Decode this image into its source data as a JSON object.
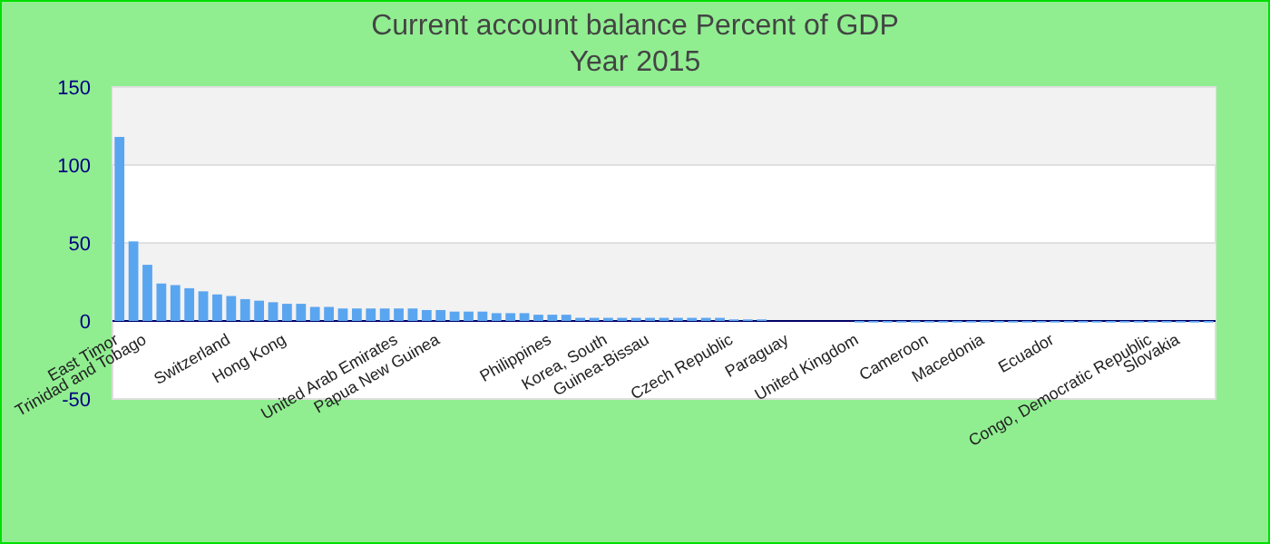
{
  "chart_data": {
    "type": "bar",
    "title": "Current account balance  Percent of GDP",
    "subtitle": "Year 2015",
    "color": "#5aa5f0",
    "ylim": [
      -50,
      150
    ],
    "yticks": [
      -50,
      0,
      50,
      100,
      150
    ],
    "grid": "y",
    "ref_lines": [
      {
        "axis": "y",
        "value": 0,
        "color": "#000066"
      }
    ],
    "categories": [
      "East Timor",
      null,
      "Trinidad and Tobago",
      null,
      null,
      null,
      null,
      null,
      "Switzerland",
      null,
      null,
      null,
      "Hong Kong",
      null,
      null,
      null,
      null,
      null,
      null,
      null,
      "United Arab Emirates",
      null,
      null,
      "Papua New Guinea",
      null,
      null,
      null,
      null,
      null,
      null,
      null,
      "Philippines",
      null,
      null,
      null,
      "Korea, South",
      null,
      null,
      "Guinea-Bissau",
      null,
      null,
      null,
      null,
      null,
      "Czech Republic",
      null,
      null,
      null,
      "Paraguay",
      null,
      null,
      null,
      null,
      "United Kingdom",
      null,
      null,
      null,
      null,
      "Cameroon",
      null,
      null,
      null,
      "Macedonia",
      null,
      null,
      null,
      null,
      "Ecuador",
      null,
      null,
      null,
      null,
      null,
      null,
      "Congo, Democratic Republic",
      null,
      "Slovakia",
      null,
      null
    ],
    "values": [
      118,
      51,
      36,
      24,
      23,
      21,
      19,
      17,
      16,
      14,
      13,
      12,
      11,
      11,
      9,
      9,
      8,
      8,
      8,
      8,
      8,
      8,
      7,
      7,
      6,
      6,
      6,
      5,
      5,
      5,
      4,
      4,
      4,
      2,
      2,
      2,
      2,
      2,
      2,
      2,
      2,
      2,
      2,
      2,
      1,
      1,
      1,
      0,
      0,
      0,
      0,
      0,
      0,
      -1,
      -1,
      -1,
      -1,
      -1,
      -1,
      -1,
      -1,
      -1,
      -1,
      -1,
      -1,
      -1,
      -1,
      -1,
      -1,
      -1,
      -1,
      -1,
      -1,
      -1,
      -1,
      -1,
      -1,
      -1,
      -1
    ]
  }
}
